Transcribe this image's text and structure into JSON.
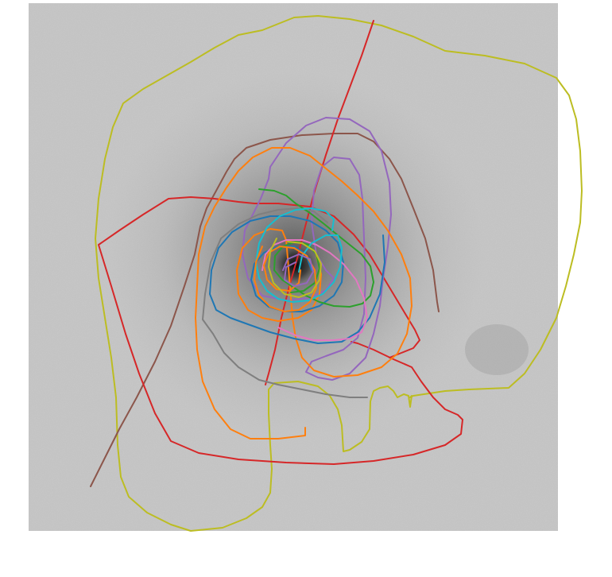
{
  "image": {
    "background": "#ffffff",
    "field_color": "#c8c8c8",
    "core_color": "#1a1a1a"
  },
  "trajectories": [
    {
      "color": "#bcbd22"
    },
    {
      "color": "#d62728"
    },
    {
      "color": "#8c564b"
    },
    {
      "color": "#9467bd"
    },
    {
      "color": "#ff7f0e"
    },
    {
      "color": "#7f7f7f"
    },
    {
      "color": "#1f77b4"
    },
    {
      "color": "#2ca02c"
    },
    {
      "color": "#e377c2"
    },
    {
      "color": "#17becf"
    }
  ]
}
